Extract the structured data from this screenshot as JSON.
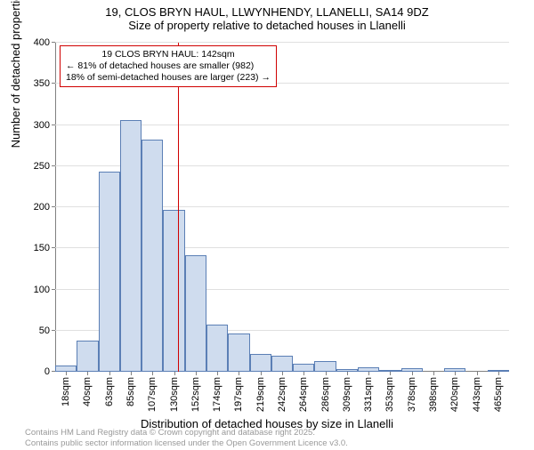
{
  "title_line1": "19, CLOS BRYN HAUL, LLWYNHENDY, LLANELLI, SA14 9DZ",
  "title_line2": "Size of property relative to detached houses in Llanelli",
  "y_label": "Number of detached properties",
  "x_label": "Distribution of detached houses by size in Llanelli",
  "footer_line1": "Contains HM Land Registry data © Crown copyright and database right 2025.",
  "footer_line2": "Contains public sector information licensed under the Open Government Licence v3.0.",
  "annotation": {
    "line1": "19 CLOS BRYN HAUL: 142sqm",
    "line2": "← 81% of detached houses are smaller (982)",
    "line3": "18% of semi-detached houses are larger (223) →"
  },
  "chart": {
    "type": "histogram",
    "ylim": [
      0,
      400
    ],
    "ytick_step": 50,
    "bar_fill": "#cfdcee",
    "bar_border": "#5b7fb5",
    "grid_color": "#e0e0e0",
    "axis_color": "#808080",
    "background_color": "#ffffff",
    "ref_line_x_index": 5.7,
    "ref_line_color": "#d00000",
    "annotation_border": "#d00000",
    "categories": [
      "18sqm",
      "40sqm",
      "63sqm",
      "85sqm",
      "107sqm",
      "130sqm",
      "152sqm",
      "174sqm",
      "197sqm",
      "219sqm",
      "242sqm",
      "264sqm",
      "286sqm",
      "309sqm",
      "331sqm",
      "353sqm",
      "378sqm",
      "398sqm",
      "420sqm",
      "443sqm",
      "465sqm"
    ],
    "values": [
      8,
      38,
      243,
      306,
      282,
      197,
      142,
      57,
      46,
      22,
      20,
      10,
      13,
      3,
      5,
      2,
      4,
      0,
      4,
      0,
      2
    ]
  }
}
